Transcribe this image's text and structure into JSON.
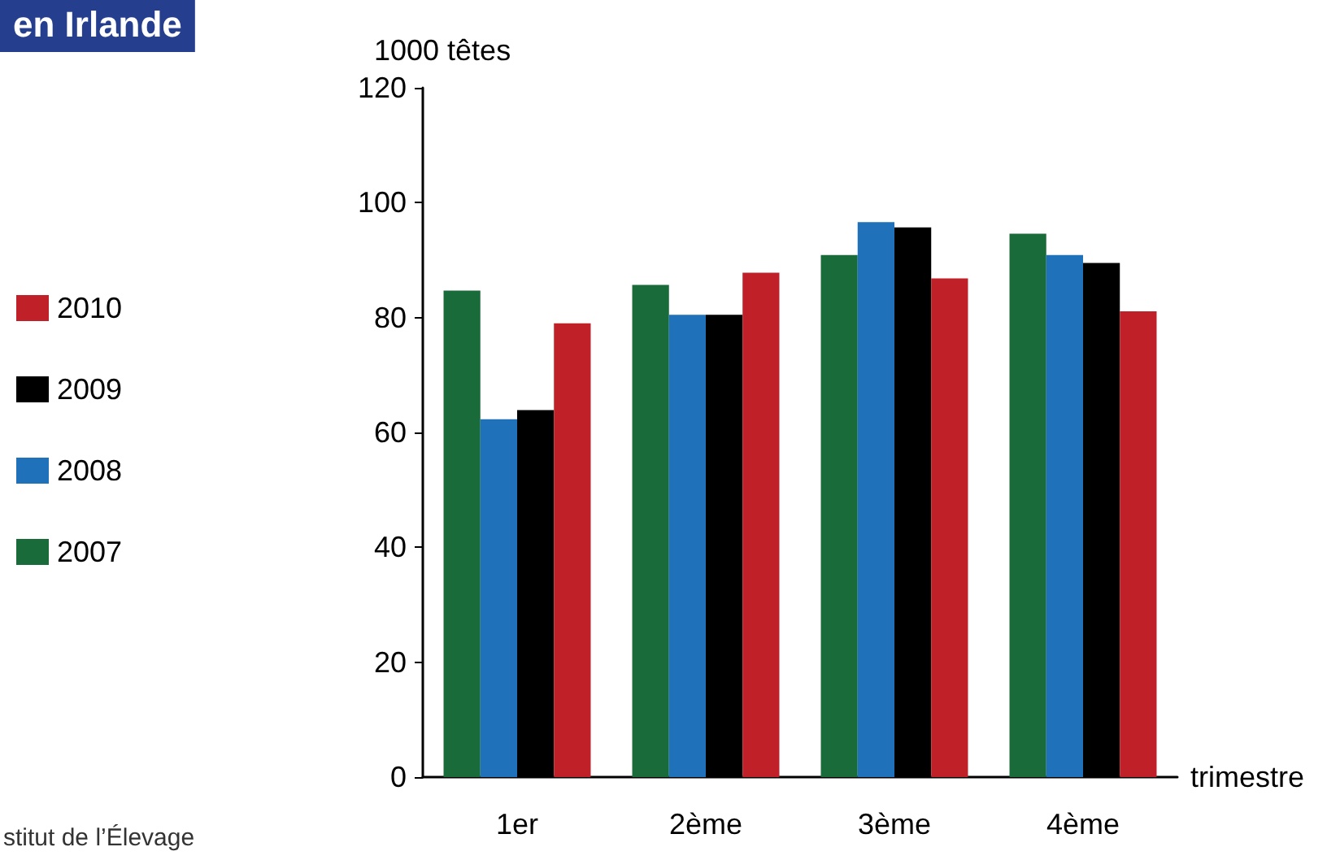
{
  "chart_data": {
    "type": "bar",
    "title": "en Irlande",
    "ylabel": "1000 têtes",
    "xlabel": "trimestre",
    "annotations": [
      "stitut de l’Élevage"
    ],
    "categories": [
      "1er",
      "2ème",
      "3ème",
      "4ème"
    ],
    "series": [
      {
        "name": "2007",
        "color": "#1a6b3a",
        "values": [
          84.7,
          85.7,
          90.9,
          94.6
        ]
      },
      {
        "name": "2008",
        "color": "#1f72ba",
        "values": [
          62.3,
          80.5,
          96.6,
          90.9
        ]
      },
      {
        "name": "2009",
        "color": "#000000",
        "values": [
          63.9,
          80.5,
          95.7,
          89.5
        ]
      },
      {
        "name": "2010",
        "color": "#c02027",
        "values": [
          79.0,
          87.8,
          86.8,
          81.1
        ]
      }
    ],
    "ylim": [
      0,
      120
    ],
    "yticks": [
      0,
      20,
      40,
      60,
      80,
      100,
      120
    ],
    "grid": false,
    "legend": "left"
  }
}
